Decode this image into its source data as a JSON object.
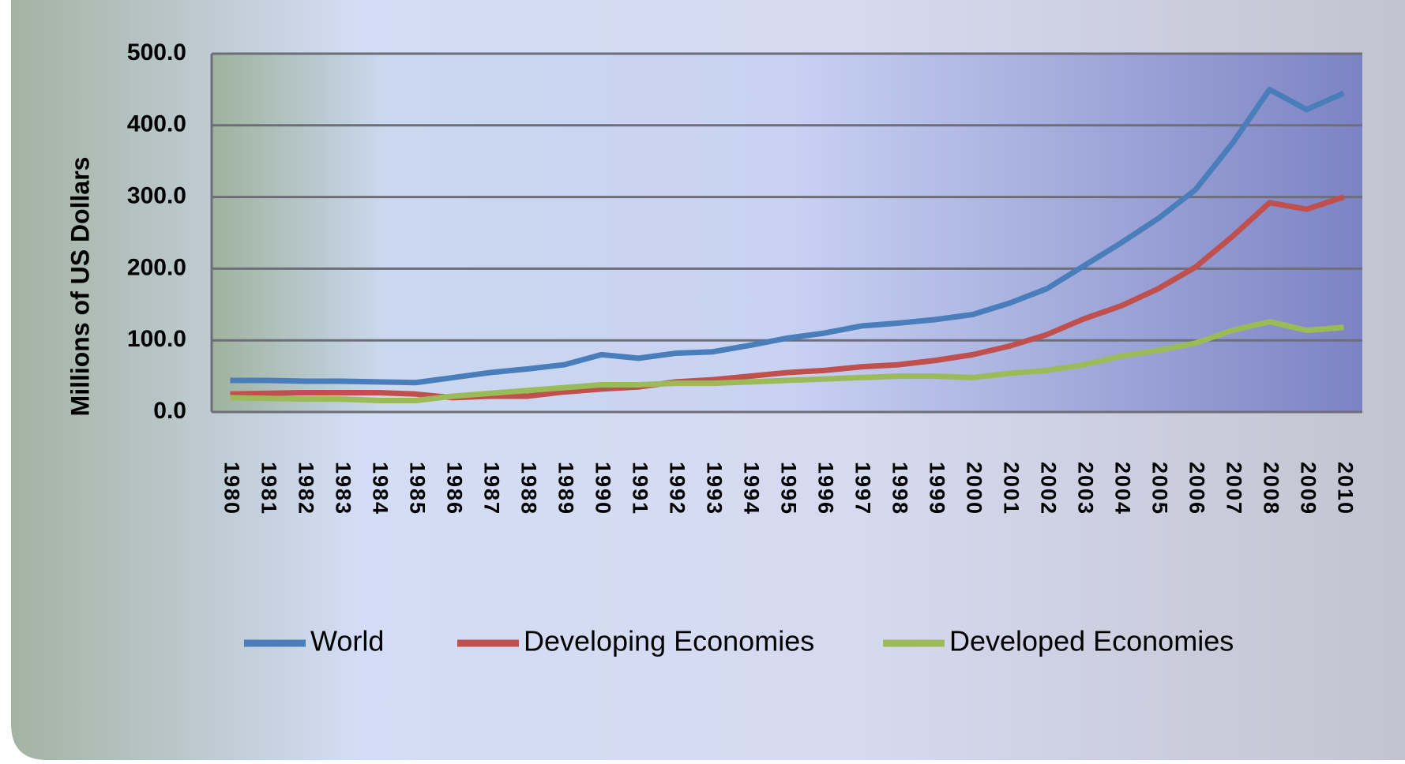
{
  "chart_data": {
    "type": "line",
    "y_label": "Millions of US Dollars",
    "categories": [
      "1980",
      "1981",
      "1982",
      "1983",
      "1984",
      "1985",
      "1986",
      "1987",
      "1988",
      "1989",
      "1990",
      "1991",
      "1992",
      "1993",
      "1994",
      "1995",
      "1996",
      "1997",
      "1998",
      "1999",
      "2000",
      "2001",
      "2002",
      "2003",
      "2004",
      "2005",
      "2006",
      "2007",
      "2008",
      "2009",
      "2010"
    ],
    "series": [
      {
        "name": "World",
        "color": "#4a7ebb",
        "values": [
          44,
          44,
          43,
          43,
          42,
          41,
          48,
          55,
          60,
          66,
          80,
          75,
          82,
          84,
          93,
          103,
          110,
          120,
          124,
          129,
          136,
          152,
          172,
          204,
          236,
          270,
          310,
          375,
          450,
          422,
          445
        ]
      },
      {
        "name": "Developing Economies",
        "color": "#c0504d",
        "values": [
          25,
          26,
          27,
          27,
          27,
          25,
          20,
          22,
          22,
          28,
          32,
          35,
          42,
          45,
          50,
          55,
          58,
          63,
          66,
          72,
          80,
          92,
          108,
          130,
          148,
          172,
          202,
          245,
          292,
          283,
          300
        ]
      },
      {
        "name": "Developed Economies",
        "color": "#9bbb59",
        "values": [
          20,
          19,
          18,
          18,
          16,
          16,
          22,
          26,
          30,
          34,
          38,
          38,
          40,
          40,
          42,
          44,
          46,
          48,
          50,
          50,
          48,
          54,
          58,
          66,
          78,
          86,
          96,
          114,
          126,
          114,
          118
        ]
      }
    ],
    "ylim": [
      0,
      500
    ],
    "yticks": [
      {
        "value": 0,
        "label": "0.0"
      },
      {
        "value": 100,
        "label": "100.0"
      },
      {
        "value": 200,
        "label": "200.0"
      },
      {
        "value": 300,
        "label": "300.0"
      },
      {
        "value": 400,
        "label": "400.0"
      },
      {
        "value": 500,
        "label": "500.0"
      }
    ],
    "grid": true
  }
}
